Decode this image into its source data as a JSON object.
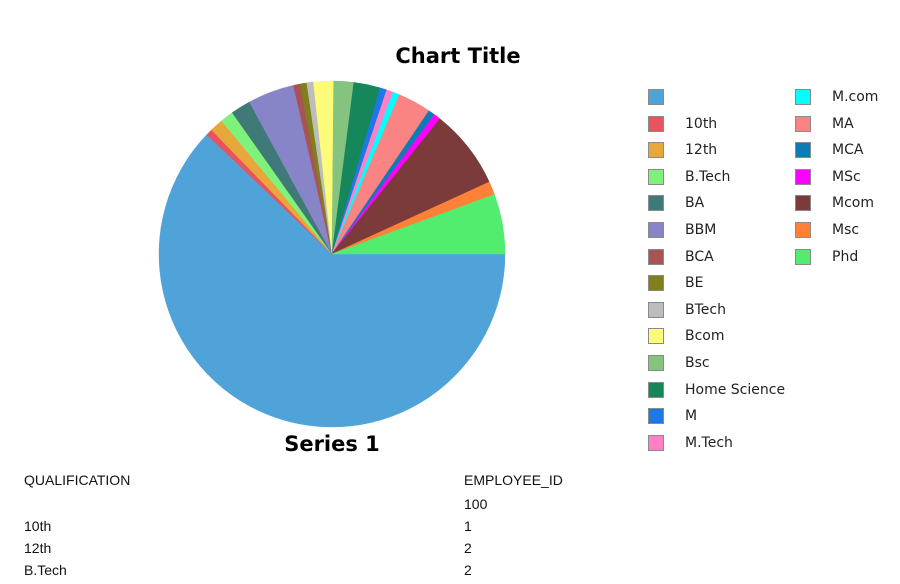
{
  "chart_data": {
    "type": "pie",
    "title": "Chart Title",
    "series_name": "Series 1",
    "legend_position": "right",
    "categories": [
      "",
      "10th",
      "12th",
      "B.Tech",
      "BA",
      "BBM",
      "BCA",
      "BE",
      "BTech",
      "Bcom",
      "Bsc",
      "Home Science",
      "M",
      "M.Tech",
      "M.com",
      "MA",
      "MCA",
      "MSc",
      "Mcom",
      "Msc",
      "Phd"
    ],
    "values": [
      100,
      1,
      2,
      2,
      3,
      7,
      1,
      1,
      1,
      3,
      3,
      4,
      1,
      1,
      1,
      5,
      1,
      1,
      12,
      2,
      9
    ],
    "colors": [
      "#4fa3d9",
      "#e8545e",
      "#e8a73a",
      "#7ef27a",
      "#3f7a78",
      "#8784c7",
      "#a85454",
      "#7f7f1c",
      "#bdbdbd",
      "#fcfc7a",
      "#84c47f",
      "#15875a",
      "#1f78e8",
      "#ff80c5",
      "#00ffff",
      "#fa8383",
      "#0f7bb5",
      "#ff00ff",
      "#7b3b3b",
      "#ff8037",
      "#52ec6e"
    ]
  },
  "table": {
    "headers": [
      "QUALIFICATION",
      "EMPLOYEE_ID"
    ],
    "rows": [
      [
        "",
        "100"
      ],
      [
        "10th",
        "1"
      ],
      [
        "12th",
        "2"
      ],
      [
        "B.Tech",
        "2"
      ]
    ]
  }
}
